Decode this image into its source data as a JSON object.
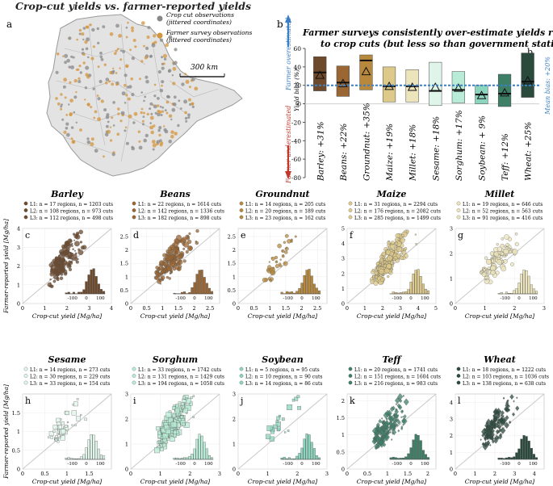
{
  "title": "Crop-cut yields vs. farmer-reported yields",
  "map": {
    "letter": "a",
    "legend": [
      "Crop cut observations (jittered coordinates)",
      "Farmer survey observations (jittered coordinates)"
    ],
    "legend_lines": [
      [
        "Crop cut observations",
        "(jittered coordinates)"
      ],
      [
        "Farmer survey observations",
        "(jittered coordinates)"
      ]
    ],
    "scale_label": "300 km",
    "colors": {
      "land": "#e3e3e3",
      "border": "#9a9a9a",
      "crop_cut": "#888888",
      "farmer": "#d4963c"
    }
  },
  "bias_chart": {
    "letter": "b",
    "title_lines": [
      "Farmer surveys consistently over-estimate yields relative",
      "to crop cuts (but less so than government statistics)"
    ],
    "ylabel": "Yield bias (%)",
    "over_label": "Farmer overestimated",
    "under_label": "Farmer underestimated",
    "mean_label": "Mean bias: +20%",
    "mean_bias": 20,
    "ylim": [
      -80,
      60
    ],
    "ticks": [
      -80,
      -60,
      -40,
      -20,
      0,
      20,
      40,
      60
    ],
    "colors": {
      "over_arrow": "#3b7fc4",
      "under_arrow": "#c0392b",
      "mean_line": "#3b7fc4"
    }
  },
  "chart_data": [
    {
      "type": "bar",
      "title": "Farmer surveys consistently over-estimate yields relative to crop cuts (but less so than government statistics)",
      "ylabel": "Yield bias (%)",
      "ylim": [
        -80,
        60
      ],
      "categories": [
        "Barley",
        "Beans",
        "Groundnut",
        "Maize",
        "Millet",
        "Sesame",
        "Sorghum",
        "Soybean",
        "Teff",
        "Wheat"
      ],
      "labels": [
        "Barley: +31%",
        "Beans: +22%",
        "Groundnut: +35%",
        "Maize: +19%",
        "Millet: +18%",
        "Sesame: +18%",
        "Sorghum: +17%",
        "Soybean: + 9%",
        "Teff: +12%",
        "Wheat: +25%"
      ],
      "mean_bias": [
        31,
        22,
        35,
        19,
        18,
        18,
        17,
        9,
        12,
        25
      ],
      "median_bias": [
        34,
        23,
        47,
        19,
        19,
        14,
        15,
        10,
        11,
        24
      ],
      "range_low": [
        14,
        8,
        15,
        2,
        2,
        -2,
        1,
        0,
        -3,
        7
      ],
      "range_high": [
        51,
        41,
        53,
        40,
        37,
        45,
        35,
        20,
        32,
        55
      ],
      "colors": [
        "#6e4a2c",
        "#9a6633",
        "#b8893c",
        "#ddc98a",
        "#ece4bb",
        "#dff5ea",
        "#b8ecd6",
        "#8bd4bd",
        "#3e7f68",
        "#2b4a3e"
      ]
    },
    {
      "type": "scatter",
      "panels": [
        {
          "letter": "c",
          "crop": "Barley",
          "color": "#6e4a2c",
          "marker": "o",
          "density": 1.0,
          "xlim": [
            0,
            4
          ],
          "ylim": [
            0,
            4
          ],
          "xticks": [
            0,
            1,
            2,
            3,
            4
          ],
          "yticks": [
            0,
            1,
            2,
            3,
            4
          ],
          "legend": [
            "L1: n = 17 regions, n = 1203 cuts",
            "L2: n = 108 regions, n = 973 cuts",
            "L3: n = 112 regions, n = 498 cuts"
          ]
        },
        {
          "letter": "d",
          "crop": "Beans",
          "color": "#9a6633",
          "marker": "o",
          "density": 1.0,
          "xlim": [
            0,
            2.8
          ],
          "ylim": [
            0,
            2.8
          ],
          "xticks": [
            0,
            0.5,
            1,
            1.5,
            2,
            2.5
          ],
          "yticks": [
            0,
            0.5,
            1,
            1.5,
            2,
            2.5
          ],
          "legend": [
            "L1: n = 22 regions, n = 1614 cuts",
            "L2: n = 142 regions, n = 1336 cuts",
            "L3: n = 182 regions, n = 898 cuts"
          ]
        },
        {
          "letter": "e",
          "crop": "Groundnut",
          "color": "#b8893c",
          "marker": "o",
          "density": 0.25,
          "xlim": [
            0,
            2.8
          ],
          "ylim": [
            0,
            2.8
          ],
          "xticks": [
            0,
            0.5,
            1,
            1.5,
            2,
            2.5
          ],
          "yticks": [
            0,
            0.5,
            1,
            1.5,
            2,
            2.5
          ],
          "legend": [
            "L1: n = 14 regions, n = 205 cuts",
            "L2: n = 20 regions, n = 189 cuts",
            "L3: n = 23 regions, n = 162 cuts"
          ]
        },
        {
          "letter": "f",
          "crop": "Maize",
          "color": "#ddc98a",
          "marker": "o",
          "density": 1.4,
          "xlim": [
            0,
            5
          ],
          "ylim": [
            0,
            5
          ],
          "xticks": [
            0,
            1,
            2,
            3,
            4,
            5
          ],
          "yticks": [
            0,
            1,
            2,
            3,
            4,
            5
          ],
          "legend": [
            "L1: n = 31 regions, n = 2294 cuts",
            "L2: n = 176 regions, n = 2082 cuts",
            "L3: n = 285 regions, n = 1499 cuts"
          ]
        },
        {
          "letter": "g",
          "crop": "Millet",
          "color": "#ece4bb",
          "marker": "o",
          "density": 0.6,
          "xlim": [
            0,
            3
          ],
          "ylim": [
            0,
            3
          ],
          "xticks": [
            0,
            1,
            2,
            3
          ],
          "yticks": [
            0,
            1,
            2,
            3
          ],
          "legend": [
            "L1: n = 19 regions, n = 646 cuts",
            "L2: n = 52 regions, n = 563 cuts",
            "L3: n = 91 regions, n = 416 cuts"
          ]
        },
        {
          "letter": "h",
          "crop": "Sesame",
          "color": "#dff5ea",
          "marker": "s",
          "density": 0.25,
          "xlim": [
            0,
            2
          ],
          "ylim": [
            0,
            2
          ],
          "xticks": [
            0,
            0.5,
            1,
            1.5
          ],
          "yticks": [
            0,
            0.5,
            1,
            1.5
          ],
          "legend": [
            "L1: n = 14 regions, n = 273 cuts",
            "L2: n = 30 regions, n = 229 cuts",
            "L3: n = 33 regions, n = 154 cuts"
          ]
        },
        {
          "letter": "i",
          "crop": "Sorghum",
          "color": "#b8ecd6",
          "marker": "s",
          "density": 1.1,
          "xlim": [
            0,
            3
          ],
          "ylim": [
            0,
            3
          ],
          "xticks": [
            0,
            1,
            2,
            3
          ],
          "yticks": [
            0,
            1,
            2,
            3
          ],
          "legend": [
            "L1: n = 33 regions, n = 1742 cuts",
            "L2: n = 131 regions, n = 1429 cuts",
            "L3: n = 194 regions, n = 1058 cuts"
          ]
        },
        {
          "letter": "j",
          "crop": "Soybean",
          "color": "#8bd4bd",
          "marker": "s",
          "density": 0.12,
          "xlim": [
            0,
            3
          ],
          "ylim": [
            0,
            3
          ],
          "xticks": [
            0,
            1,
            2,
            3
          ],
          "yticks": [
            0,
            1,
            2,
            3
          ],
          "legend": [
            "L1: n = 5 regions, n = 95 cuts",
            "L2: n = 10 regions, n = 90 cuts",
            "L3: n = 14 regions, n = 86 cuts"
          ]
        },
        {
          "letter": "k",
          "crop": "Teff",
          "color": "#3e7f68",
          "marker": "d",
          "density": 1.0,
          "xlim": [
            0,
            2.2
          ],
          "ylim": [
            0,
            2.2
          ],
          "xticks": [
            0,
            0.5,
            1,
            1.5,
            2
          ],
          "yticks": [
            0,
            0.5,
            1,
            1.5,
            2
          ],
          "legend": [
            "L1: n = 20 regions, n = 1741 cuts",
            "L2: n = 151 regions, n = 1604 cuts",
            "L3: n = 216 regions, n = 983 cuts"
          ]
        },
        {
          "letter": "l",
          "crop": "Wheat",
          "color": "#2b4a3e",
          "marker": "d",
          "density": 0.9,
          "xlim": [
            0,
            4.5
          ],
          "ylim": [
            0,
            4.5
          ],
          "xticks": [
            0,
            1,
            2,
            3,
            4
          ],
          "yticks": [
            0,
            1,
            2,
            3,
            4
          ],
          "legend": [
            "L1: n = 18 regions, n = 1222 cuts",
            "L2: n = 103 regions, n = 1036 cuts",
            "L3: n = 138 regions, n = 638 cuts"
          ]
        }
      ],
      "xlabel": "Crop-cut yield [Mg/ha]",
      "ylabel": "Farmer-reported yield [Mg/ha]",
      "hist_ticks": [
        "-100",
        "0",
        "100"
      ]
    }
  ]
}
